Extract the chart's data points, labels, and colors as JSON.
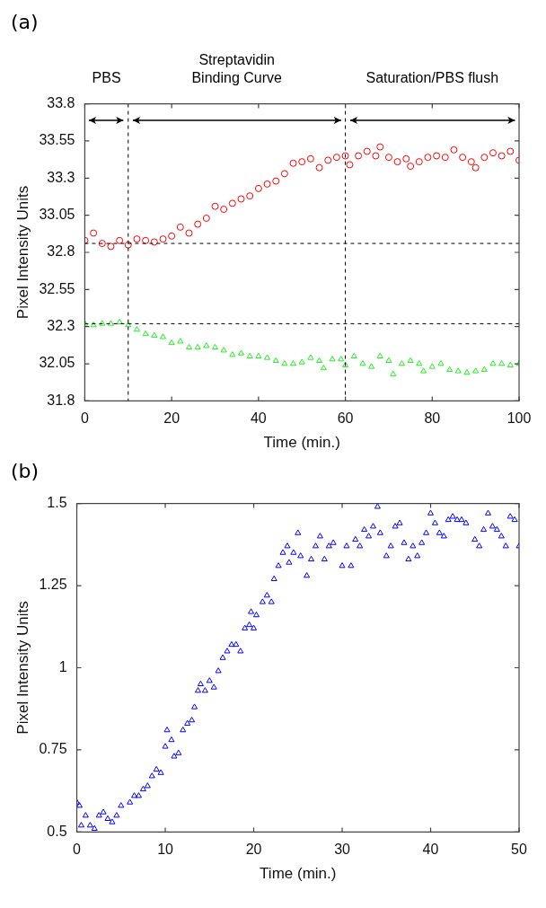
{
  "chart_data": [
    {
      "type": "scatter",
      "title": "(a)",
      "xlabel": "Time (min.)",
      "ylabel": "Pixel Intensity Units",
      "xlim": [
        0,
        100
      ],
      "xticks": [
        0,
        20,
        40,
        60,
        80,
        100
      ],
      "ylim": [
        31.8,
        33.8
      ],
      "yticks": [
        31.8,
        32.05,
        32.3,
        32.55,
        32.8,
        33.05,
        33.3,
        33.55,
        33.8
      ],
      "annotations": [
        "PBS",
        "Streptavidin Binding Curve",
        "Saturation/PBS flush"
      ],
      "ref_lines": [
        {
          "axis": "x",
          "value": 10,
          "line_style": "dashed",
          "color": "#000000"
        },
        {
          "axis": "x",
          "value": 60,
          "line_style": "dashed",
          "color": "#000000"
        },
        {
          "axis": "y",
          "value": 32.86,
          "line_style": "dashed",
          "color": "#000000"
        },
        {
          "axis": "y",
          "value": 32.32,
          "line_style": "dashed",
          "color": "#000000"
        }
      ],
      "series": [
        {
          "color": "#ff0000",
          "marker": "circle",
          "x": [
            0,
            2,
            4,
            6,
            8,
            10,
            12,
            14,
            16,
            18,
            20,
            22,
            24,
            26,
            28,
            30,
            32,
            34,
            36,
            38,
            40,
            42,
            44,
            46,
            48,
            50,
            52,
            54,
            56,
            58,
            60,
            61,
            63,
            65,
            67,
            68,
            70,
            72,
            74,
            75,
            77,
            79,
            81,
            83,
            85,
            87,
            89,
            90,
            92,
            94,
            96,
            98,
            100
          ],
          "values": [
            32.88,
            32.93,
            32.86,
            32.84,
            32.88,
            32.85,
            32.89,
            32.88,
            32.87,
            32.89,
            32.91,
            32.97,
            32.93,
            32.99,
            33.03,
            33.11,
            33.09,
            33.13,
            33.16,
            33.18,
            33.23,
            33.26,
            33.28,
            33.33,
            33.4,
            33.41,
            33.43,
            33.37,
            33.42,
            33.44,
            33.45,
            33.39,
            33.45,
            33.48,
            33.45,
            33.51,
            33.44,
            33.41,
            33.43,
            33.38,
            33.41,
            33.44,
            33.45,
            33.44,
            33.49,
            33.44,
            33.41,
            33.37,
            33.44,
            33.47,
            33.45,
            33.48,
            33.42
          ]
        },
        {
          "color": "#22ee22",
          "marker": "triangle",
          "x": [
            0,
            2,
            4,
            6,
            8,
            10,
            12,
            14,
            16,
            18,
            20,
            22,
            24,
            26,
            28,
            30,
            32,
            34,
            36,
            38,
            40,
            42,
            44,
            46,
            48,
            50,
            52,
            54,
            55,
            57,
            59,
            60,
            62,
            64,
            66,
            68,
            70,
            71,
            73,
            75,
            77,
            78,
            80,
            82,
            84,
            86,
            88,
            90,
            92,
            94,
            96,
            98,
            100
          ],
          "values": [
            32.32,
            32.31,
            32.32,
            32.32,
            32.33,
            32.31,
            32.28,
            32.25,
            32.24,
            32.23,
            32.19,
            32.2,
            32.16,
            32.16,
            32.17,
            32.16,
            32.14,
            32.11,
            32.12,
            32.1,
            32.1,
            32.09,
            32.07,
            32.05,
            32.05,
            32.06,
            32.09,
            32.07,
            32.02,
            32.08,
            32.08,
            32.04,
            32.1,
            32.05,
            32.03,
            32.1,
            32.07,
            31.98,
            32.05,
            32.07,
            32.05,
            32.0,
            32.03,
            32.05,
            32.01,
            32.0,
            31.99,
            32.0,
            32.01,
            32.05,
            32.05,
            32.04,
            32.05
          ]
        }
      ]
    },
    {
      "type": "scatter",
      "title": "(b)",
      "xlabel": "Time (min.)",
      "ylabel": "Pixel Intensity Units",
      "xlim": [
        0,
        50
      ],
      "xticks": [
        0,
        10,
        20,
        30,
        40,
        50
      ],
      "ylim": [
        0.5,
        1.5
      ],
      "yticks": [
        0.5,
        0.75,
        1,
        1.25,
        1.5
      ],
      "series": [
        {
          "color": "#0000ff",
          "marker": "triangle",
          "x": [
            0,
            0.3,
            0.5,
            1,
            1.5,
            2,
            2.5,
            3,
            3.5,
            4,
            4.5,
            5,
            6,
            6.5,
            7,
            7.5,
            8,
            8.5,
            9,
            9.5,
            10,
            10.2,
            10.7,
            11,
            11.5,
            12,
            12.5,
            13,
            13.3,
            13.7,
            14,
            14.5,
            15,
            15.5,
            16,
            16.5,
            17,
            17.5,
            18,
            18.5,
            19,
            19.5,
            19.7,
            20,
            20.3,
            21,
            21.5,
            22,
            22.3,
            22.8,
            23.3,
            23.8,
            24,
            24.5,
            25,
            25.3,
            26,
            26.5,
            27,
            27.5,
            28,
            28.5,
            29,
            30,
            30.5,
            31,
            31.5,
            32,
            32.5,
            33,
            33.5,
            34,
            34.3,
            35,
            35.5,
            36,
            36.5,
            37,
            37.5,
            38,
            38.5,
            39,
            39.5,
            40,
            40.5,
            41,
            41.5,
            42,
            42.5,
            43,
            43.5,
            44,
            45,
            45.5,
            46,
            46.5,
            47,
            47.5,
            48,
            48.5,
            49,
            49.5,
            50
          ],
          "values": [
            0.59,
            0.58,
            0.52,
            0.55,
            0.52,
            0.51,
            0.55,
            0.56,
            0.54,
            0.53,
            0.55,
            0.58,
            0.59,
            0.61,
            0.61,
            0.63,
            0.64,
            0.67,
            0.69,
            0.68,
            0.76,
            0.81,
            0.78,
            0.73,
            0.74,
            0.81,
            0.83,
            0.84,
            0.88,
            0.93,
            0.95,
            0.93,
            0.96,
            0.94,
            0.99,
            1.03,
            1.05,
            1.07,
            1.07,
            1.05,
            1.12,
            1.13,
            1.17,
            1.12,
            1.16,
            1.2,
            1.22,
            1.2,
            1.27,
            1.31,
            1.35,
            1.37,
            1.32,
            1.35,
            1.41,
            1.34,
            1.28,
            1.33,
            1.37,
            1.4,
            1.33,
            1.37,
            1.38,
            1.31,
            1.37,
            1.31,
            1.39,
            1.37,
            1.42,
            1.4,
            1.43,
            1.49,
            1.41,
            1.34,
            1.37,
            1.43,
            1.44,
            1.38,
            1.33,
            1.37,
            1.34,
            1.38,
            1.41,
            1.47,
            1.44,
            1.41,
            1.4,
            1.45,
            1.46,
            1.45,
            1.45,
            1.44,
            1.39,
            1.37,
            1.42,
            1.47,
            1.43,
            1.42,
            1.4,
            1.37,
            1.46,
            1.45,
            1.37
          ]
        }
      ]
    }
  ]
}
